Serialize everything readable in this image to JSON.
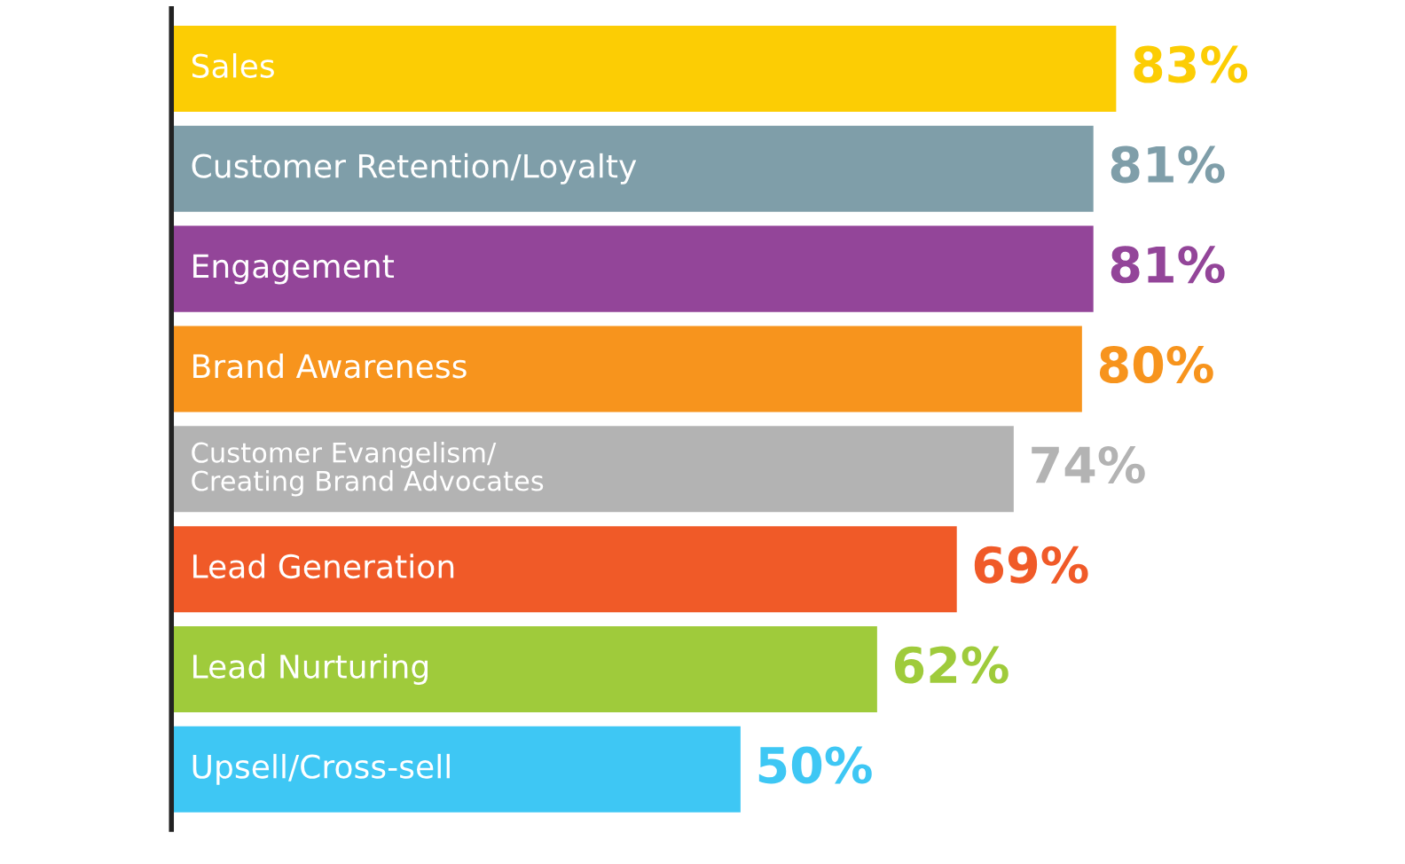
{
  "chart_data": {
    "type": "bar",
    "orientation": "horizontal",
    "legend": false,
    "value_labels": [
      "83%",
      "81%",
      "81%",
      "80%",
      "74%",
      "69%",
      "62%",
      "50%"
    ],
    "categories": [
      "Sales",
      "Customer Retention/Loyalty",
      "Engagement",
      "Brand Awareness",
      "Customer Evangelism/\nCreating Brand Advocates",
      "Lead Generation",
      "Lead Nurturing",
      "Upsell/Cross-sell"
    ],
    "values": [
      83,
      81,
      81,
      80,
      74,
      69,
      62,
      50
    ],
    "colors": [
      "#fccd04",
      "#7f9ea9",
      "#934599",
      "#f7941d",
      "#b3b3b3",
      "#f05a28",
      "#9fcb3b",
      "#3ec7f4"
    ]
  }
}
